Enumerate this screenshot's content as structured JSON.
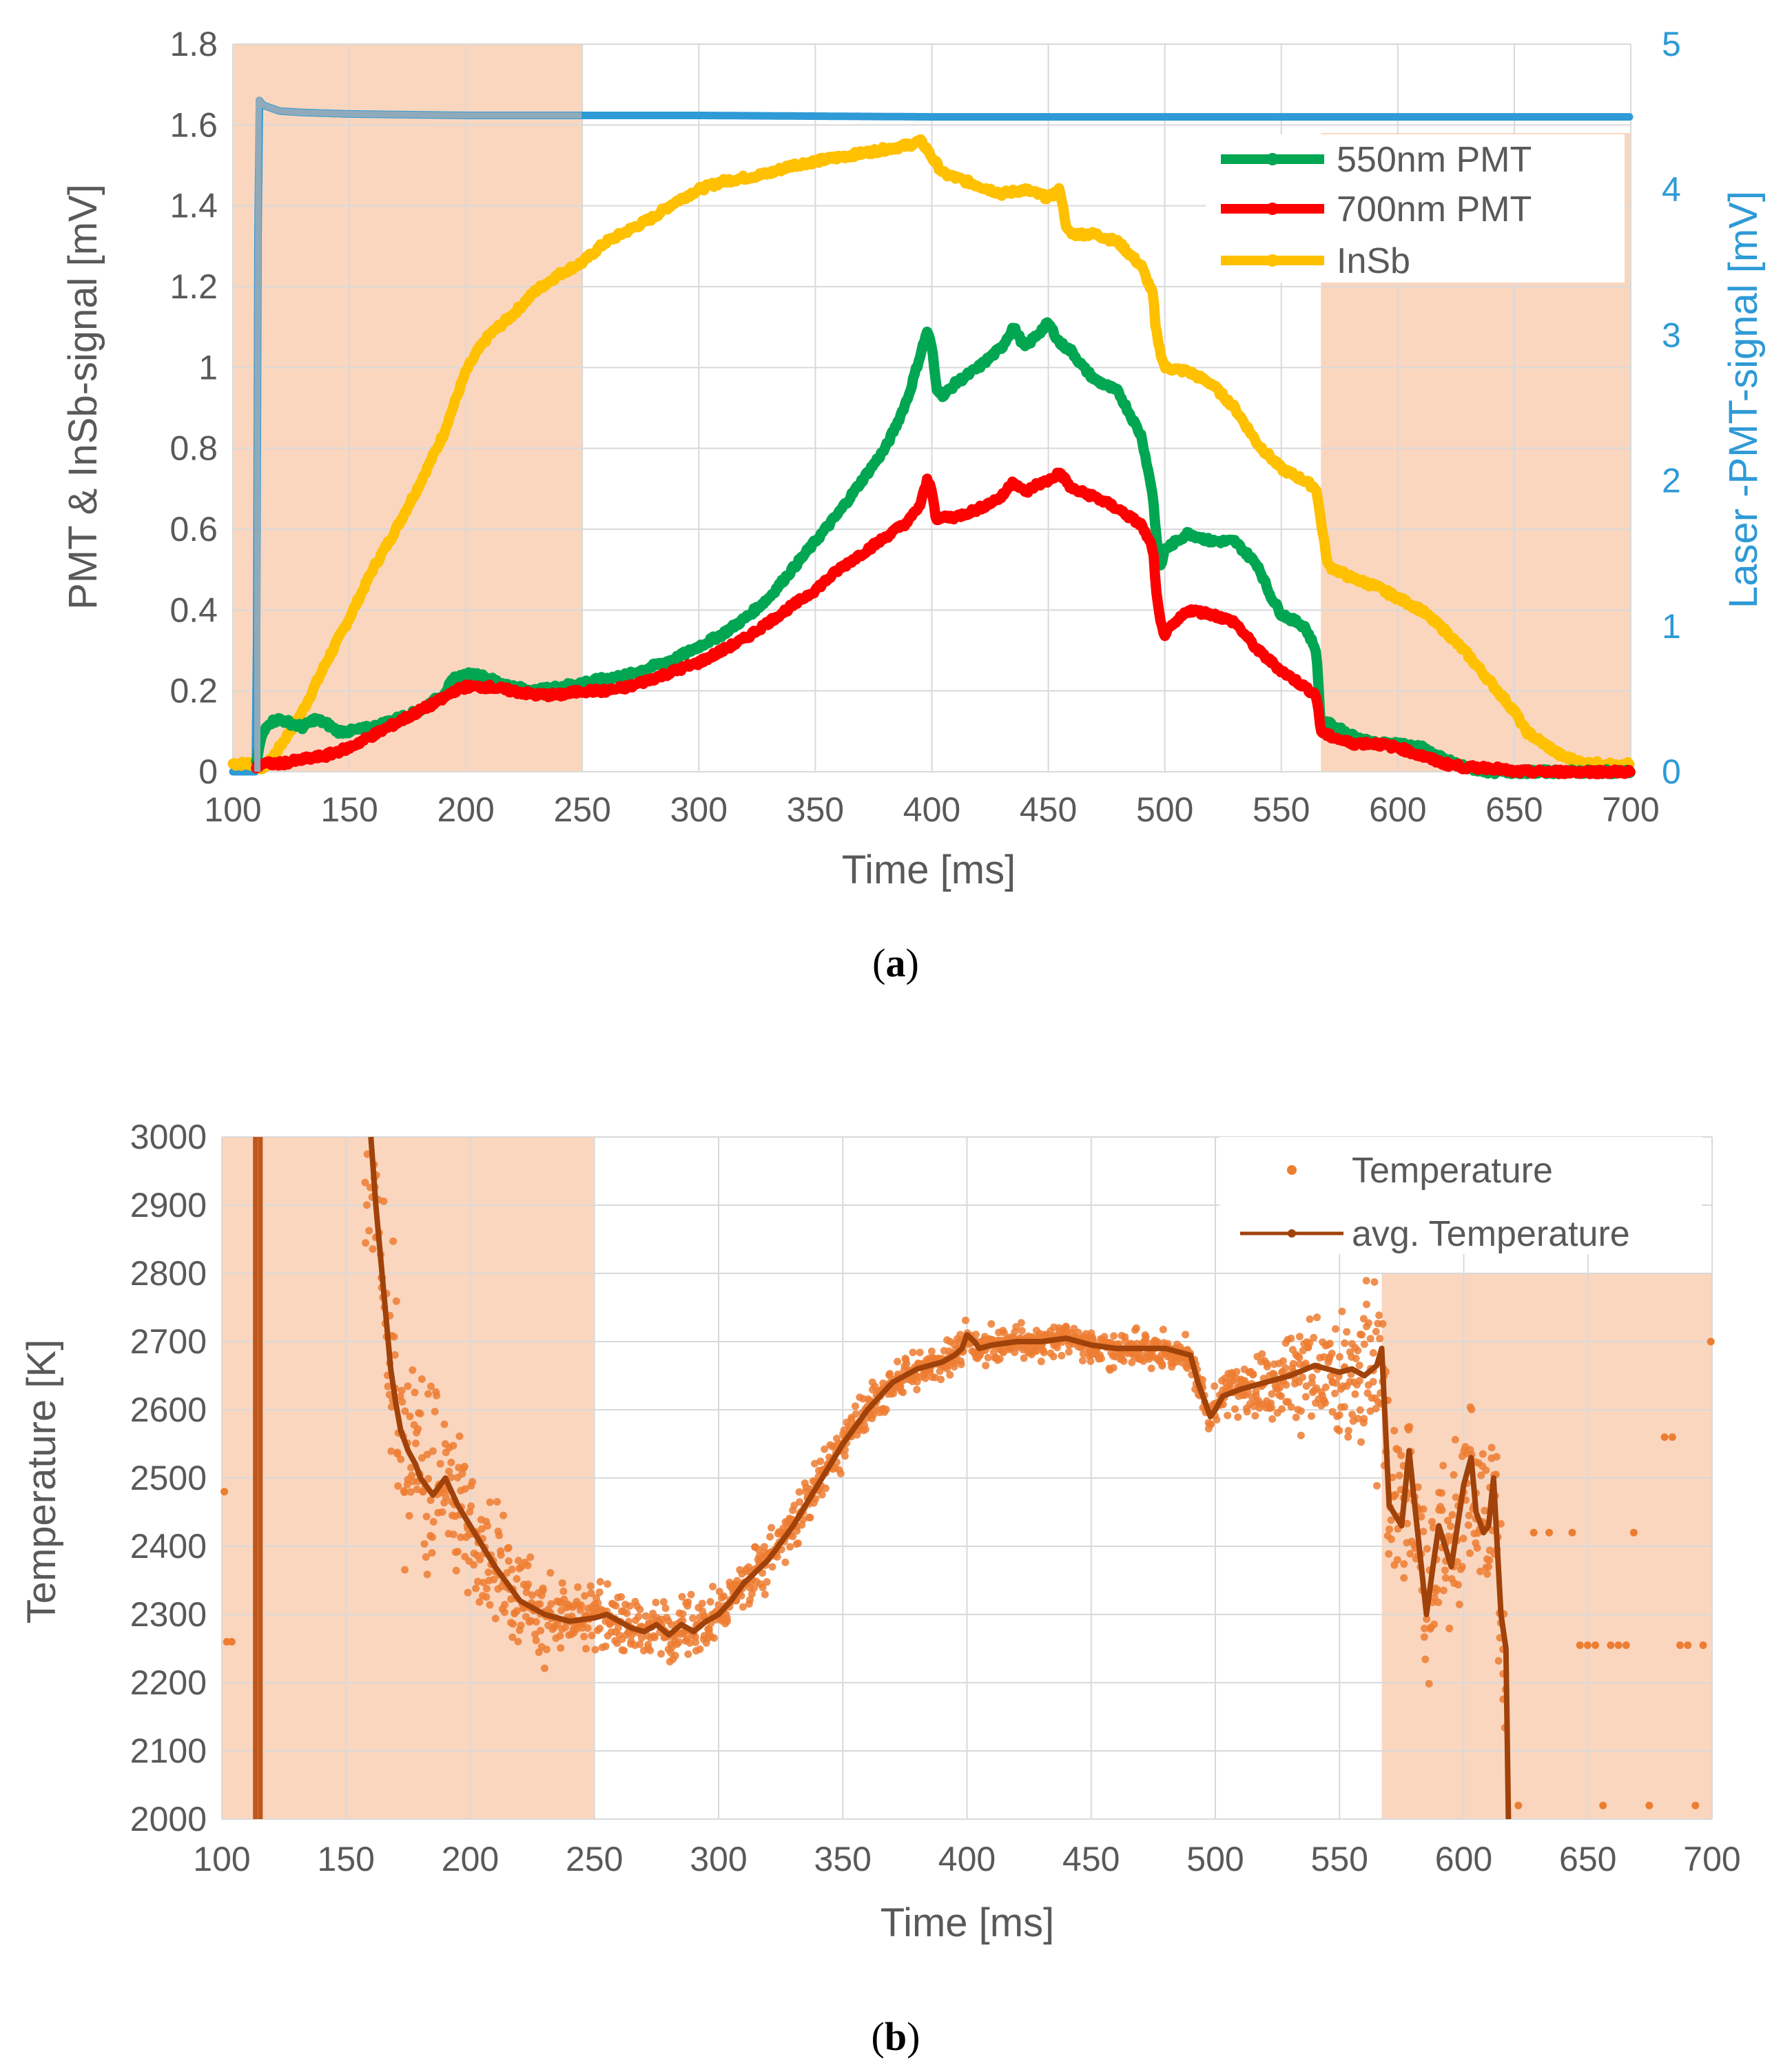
{
  "chart_data": [
    {
      "type": "line",
      "panel_label": "a",
      "xlabel": "Time [ms]",
      "ylabel": "PMT & InSb-signal [mV]",
      "y2label": "Laser -PMT-signal [mV]",
      "xlim": [
        100,
        700
      ],
      "ylim": [
        0,
        1.8
      ],
      "y2lim": [
        0,
        5
      ],
      "x_ticks": [
        "100",
        "150",
        "200",
        "250",
        "300",
        "350",
        "400",
        "450",
        "500",
        "550",
        "600",
        "650",
        "700"
      ],
      "y_ticks": [
        "0",
        "0.2",
        "0.4",
        "0.6",
        "0.8",
        "1",
        "1.2",
        "1.4",
        "1.6",
        "1.8"
      ],
      "y2_ticks": [
        "0",
        "1",
        "2",
        "3",
        "4",
        "5"
      ],
      "grid": true,
      "legend_position": "top-right",
      "shaded_regions": [
        [
          100,
          250
        ],
        [
          567,
          700
        ]
      ],
      "series": [
        {
          "name": "550nm PMT",
          "color": "#00a651",
          "axis": "left",
          "x": [
            110,
            112,
            115,
            120,
            125,
            130,
            135,
            140,
            145,
            150,
            160,
            170,
            180,
            190,
            195,
            200,
            205,
            210,
            220,
            230,
            240,
            250,
            260,
            270,
            280,
            290,
            300,
            310,
            320,
            330,
            340,
            350,
            360,
            370,
            380,
            385,
            390,
            395,
            398,
            400,
            402,
            405,
            410,
            420,
            430,
            435,
            440,
            445,
            450,
            455,
            460,
            465,
            470,
            480,
            490,
            495,
            496,
            498,
            500,
            510,
            520,
            530,
            540,
            545,
            550,
            560,
            565,
            567,
            570,
            580,
            590,
            600,
            610,
            620,
            630,
            640,
            650,
            670,
            690,
            700
          ],
          "values": [
            0.02,
            0.08,
            0.12,
            0.13,
            0.12,
            0.11,
            0.13,
            0.12,
            0.1,
            0.1,
            0.11,
            0.13,
            0.15,
            0.19,
            0.23,
            0.24,
            0.24,
            0.23,
            0.21,
            0.2,
            0.21,
            0.22,
            0.23,
            0.24,
            0.26,
            0.28,
            0.31,
            0.34,
            0.38,
            0.43,
            0.5,
            0.57,
            0.64,
            0.72,
            0.8,
            0.86,
            0.93,
            1.03,
            1.09,
            1.05,
            0.95,
            0.93,
            0.96,
            1.0,
            1.05,
            1.1,
            1.05,
            1.08,
            1.11,
            1.06,
            1.04,
            1.0,
            0.97,
            0.94,
            0.83,
            0.68,
            0.6,
            0.5,
            0.55,
            0.59,
            0.57,
            0.57,
            0.51,
            0.44,
            0.39,
            0.36,
            0.3,
            0.11,
            0.12,
            0.09,
            0.07,
            0.07,
            0.06,
            0.03,
            0.01,
            0.0,
            0.0,
            0.0,
            0.0,
            0.0
          ]
        },
        {
          "name": "700nm PMT",
          "color": "#ff0000",
          "axis": "left",
          "x": [
            110,
            112,
            115,
            120,
            130,
            140,
            150,
            160,
            170,
            180,
            190,
            195,
            200,
            205,
            210,
            220,
            230,
            240,
            250,
            260,
            270,
            280,
            290,
            300,
            310,
            320,
            330,
            340,
            350,
            360,
            370,
            380,
            390,
            395,
            398,
            400,
            402,
            405,
            410,
            420,
            430,
            435,
            440,
            445,
            450,
            455,
            460,
            470,
            480,
            490,
            495,
            496,
            498,
            500,
            510,
            520,
            530,
            540,
            550,
            560,
            565,
            567,
            570,
            580,
            590,
            600,
            610,
            620,
            630,
            640,
            650,
            660,
            670,
            680,
            690,
            700
          ],
          "values": [
            0.01,
            0.02,
            0.02,
            0.02,
            0.03,
            0.04,
            0.06,
            0.09,
            0.12,
            0.15,
            0.18,
            0.2,
            0.21,
            0.21,
            0.21,
            0.2,
            0.19,
            0.19,
            0.2,
            0.2,
            0.21,
            0.23,
            0.25,
            0.27,
            0.3,
            0.33,
            0.37,
            0.41,
            0.45,
            0.5,
            0.54,
            0.58,
            0.62,
            0.66,
            0.72,
            0.7,
            0.62,
            0.63,
            0.63,
            0.65,
            0.68,
            0.72,
            0.69,
            0.71,
            0.72,
            0.74,
            0.7,
            0.68,
            0.65,
            0.61,
            0.55,
            0.46,
            0.37,
            0.34,
            0.4,
            0.39,
            0.37,
            0.3,
            0.25,
            0.21,
            0.19,
            0.1,
            0.09,
            0.07,
            0.07,
            0.06,
            0.04,
            0.02,
            0.01,
            0.01,
            0.0,
            0.0,
            0.0,
            0.0,
            0.0,
            0.0
          ]
        },
        {
          "name": "InSb",
          "color": "#ffc000",
          "axis": "left",
          "x": [
            100,
            105,
            110,
            112,
            115,
            120,
            130,
            140,
            150,
            160,
            170,
            180,
            190,
            195,
            200,
            205,
            210,
            220,
            230,
            240,
            250,
            260,
            270,
            280,
            290,
            300,
            310,
            320,
            330,
            340,
            350,
            360,
            370,
            380,
            390,
            395,
            398,
            400,
            405,
            410,
            420,
            430,
            440,
            450,
            455,
            458,
            460,
            470,
            480,
            490,
            495,
            496,
            498,
            500,
            510,
            520,
            530,
            540,
            550,
            560,
            565,
            567,
            570,
            580,
            590,
            600,
            610,
            620,
            630,
            640,
            650,
            655,
            660,
            670,
            680,
            690,
            695,
            700
          ],
          "values": [
            0.02,
            0.02,
            0.02,
            0.01,
            0.02,
            0.06,
            0.15,
            0.27,
            0.38,
            0.5,
            0.6,
            0.71,
            0.83,
            0.91,
            0.99,
            1.04,
            1.08,
            1.13,
            1.19,
            1.23,
            1.26,
            1.31,
            1.34,
            1.37,
            1.41,
            1.44,
            1.46,
            1.47,
            1.48,
            1.5,
            1.51,
            1.52,
            1.53,
            1.54,
            1.55,
            1.56,
            1.54,
            1.52,
            1.48,
            1.47,
            1.45,
            1.43,
            1.44,
            1.42,
            1.44,
            1.34,
            1.33,
            1.33,
            1.31,
            1.25,
            1.18,
            1.1,
            1.04,
            1.0,
            0.99,
            0.96,
            0.9,
            0.81,
            0.75,
            0.72,
            0.7,
            0.62,
            0.51,
            0.48,
            0.46,
            0.43,
            0.4,
            0.35,
            0.29,
            0.22,
            0.15,
            0.1,
            0.08,
            0.04,
            0.02,
            0.02,
            0.01,
            0.02
          ]
        },
        {
          "name": "Laser",
          "color": "#2e9ad6",
          "axis": "right",
          "x": [
            100,
            105,
            110,
            111,
            113,
            120,
            130,
            150,
            200,
            250,
            300,
            400,
            500,
            600,
            700
          ],
          "values": [
            0.0,
            0.0,
            0.0,
            4.62,
            4.58,
            4.54,
            4.53,
            4.52,
            4.51,
            4.51,
            4.51,
            4.5,
            4.5,
            4.5,
            4.5
          ]
        }
      ],
      "legend": [
        "550nm PMT",
        "700nm PMT",
        "InSb"
      ]
    },
    {
      "type": "scatter",
      "panel_label": "b",
      "xlabel": "Time [ms]",
      "ylabel": "Temperature [K]",
      "xlim": [
        100,
        700
      ],
      "ylim": [
        2000,
        3000
      ],
      "x_ticks": [
        "100",
        "150",
        "200",
        "250",
        "300",
        "350",
        "400",
        "450",
        "500",
        "550",
        "600",
        "650",
        "700"
      ],
      "y_ticks": [
        "2000",
        "2100",
        "2200",
        "2300",
        "2400",
        "2500",
        "2600",
        "2700",
        "2800",
        "2900",
        "3000"
      ],
      "grid": true,
      "legend_position": "top-right",
      "shaded_regions": [
        [
          100,
          250
        ],
        [
          567,
          700
        ]
      ],
      "series": [
        {
          "name": "Temperature",
          "color": "#ed7d31",
          "kind": "scatter",
          "spread": [
            [
              150,
              360
            ],
            [
              200,
              130
            ],
            [
              250,
              70
            ],
            [
              300,
              55
            ],
            [
              400,
              35
            ],
            [
              500,
              40
            ],
            [
              567,
              190
            ]
          ]
        },
        {
          "name": "avg. Temperature",
          "color": "#a0420a",
          "kind": "line",
          "x": [
            160,
            162,
            165,
            168,
            170,
            172,
            175,
            178,
            180,
            185,
            188,
            190,
            195,
            200,
            205,
            210,
            215,
            220,
            230,
            240,
            250,
            255,
            260,
            265,
            270,
            275,
            280,
            285,
            290,
            295,
            300,
            305,
            310,
            320,
            330,
            340,
            350,
            360,
            370,
            380,
            390,
            395,
            398,
            400,
            403,
            405,
            410,
            420,
            430,
            440,
            450,
            460,
            470,
            480,
            490,
            493,
            496,
            498,
            500,
            503,
            510,
            520,
            530,
            540,
            550,
            555,
            560,
            565,
            567,
            570,
            575,
            578,
            580,
            585,
            588,
            590,
            595,
            600,
            603,
            605,
            608,
            610,
            612,
            615,
            617,
            618
          ],
          "values": [
            3000,
            2900,
            2780,
            2660,
            2610,
            2570,
            2540,
            2520,
            2500,
            2475,
            2490,
            2500,
            2460,
            2430,
            2400,
            2370,
            2345,
            2320,
            2300,
            2290,
            2295,
            2300,
            2290,
            2280,
            2275,
            2285,
            2270,
            2285,
            2275,
            2290,
            2300,
            2320,
            2345,
            2380,
            2430,
            2490,
            2550,
            2600,
            2640,
            2660,
            2670,
            2680,
            2690,
            2710,
            2700,
            2690,
            2695,
            2700,
            2700,
            2705,
            2695,
            2690,
            2690,
            2690,
            2680,
            2640,
            2610,
            2590,
            2600,
            2620,
            2630,
            2640,
            2650,
            2665,
            2655,
            2660,
            2650,
            2665,
            2690,
            2460,
            2430,
            2540,
            2470,
            2300,
            2380,
            2430,
            2370,
            2490,
            2530,
            2450,
            2420,
            2430,
            2500,
            2300,
            2250,
            2000
          ]
        }
      ],
      "legend": [
        "Temperature",
        "avg. Temperature"
      ]
    }
  ]
}
